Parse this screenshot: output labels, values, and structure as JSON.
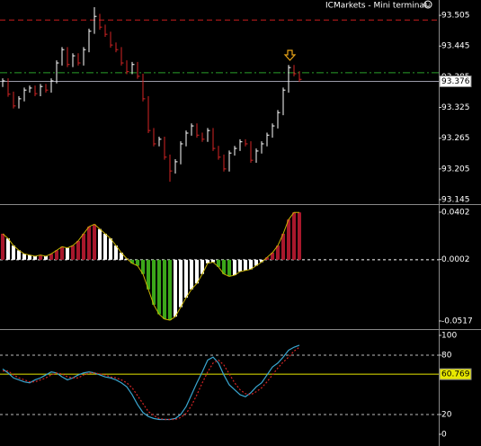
{
  "chart_data": [
    {
      "type": "ohlc",
      "title": "ICMarkets - Mini terminal",
      "high": [
        93.382,
        93.382,
        93.356,
        93.347,
        93.364,
        93.368,
        93.368,
        93.371,
        93.371,
        93.382,
        93.417,
        93.443,
        93.443,
        93.431,
        93.431,
        93.443,
        93.479,
        93.521,
        93.508,
        93.487,
        93.473,
        93.452,
        93.443,
        93.417,
        93.414,
        93.414,
        93.391,
        93.347,
        93.285,
        93.268,
        93.268,
        93.233,
        93.224,
        93.259,
        93.28,
        93.294,
        93.294,
        93.276,
        93.285,
        93.285,
        93.25,
        93.233,
        93.241,
        93.25,
        93.263,
        93.263,
        93.259,
        93.245,
        93.259,
        93.276,
        93.294,
        93.32,
        93.364,
        93.408,
        93.408,
        93.396
      ],
      "low": [
        93.365,
        93.346,
        93.323,
        93.323,
        93.337,
        93.354,
        93.347,
        93.347,
        93.354,
        93.354,
        93.372,
        93.407,
        93.404,
        93.404,
        93.407,
        93.407,
        93.433,
        93.469,
        93.477,
        93.463,
        93.442,
        93.433,
        93.407,
        93.39,
        93.39,
        93.381,
        93.337,
        93.275,
        93.249,
        93.249,
        93.223,
        93.18,
        93.196,
        93.214,
        93.249,
        93.27,
        93.266,
        93.258,
        93.258,
        93.24,
        93.223,
        93.2,
        93.2,
        93.231,
        93.24,
        93.249,
        93.217,
        93.217,
        93.235,
        93.249,
        93.266,
        93.284,
        93.31,
        93.354,
        93.386,
        93.375
      ],
      "close": [
        93.377,
        93.351,
        93.328,
        93.342,
        93.359,
        93.363,
        93.352,
        93.366,
        93.359,
        93.377,
        93.412,
        93.438,
        93.409,
        93.426,
        93.412,
        93.438,
        93.474,
        93.503,
        93.482,
        93.468,
        93.447,
        93.438,
        93.412,
        93.395,
        93.409,
        93.386,
        93.342,
        93.28,
        93.254,
        93.263,
        93.228,
        93.201,
        93.219,
        93.254,
        93.275,
        93.289,
        93.271,
        93.263,
        93.28,
        93.245,
        93.228,
        93.205,
        93.236,
        93.245,
        93.258,
        93.254,
        93.222,
        93.24,
        93.254,
        93.271,
        93.289,
        93.315,
        93.359,
        93.403,
        93.391,
        93.38
      ],
      "up_color": "#ffffff",
      "down_color": "#d42424",
      "ylim": [
        93.138,
        93.535
      ],
      "yticks": [
        93.145,
        93.205,
        93.265,
        93.325,
        93.385,
        93.445,
        93.505
      ],
      "levels": [
        {
          "value": 93.496,
          "color": "#c81e1e",
          "dash": "6 4"
        },
        {
          "value": 93.393,
          "color": "#2aa02a",
          "dash": "8 3 2 3"
        }
      ],
      "current": {
        "value": 93.376,
        "color": "#9a9aa8"
      }
    },
    {
      "type": "bar",
      "values": [
        0.022,
        0.018,
        0.012,
        0.008,
        0.005,
        0.004,
        0.003,
        0.004,
        0.003,
        0.005,
        0.008,
        0.011,
        0.01,
        0.012,
        0.016,
        0.022,
        0.028,
        0.03,
        0.026,
        0.022,
        0.018,
        0.012,
        0.006,
        0.001,
        -0.003,
        -0.005,
        -0.012,
        -0.025,
        -0.038,
        -0.046,
        -0.05,
        -0.051,
        -0.048,
        -0.04,
        -0.032,
        -0.025,
        -0.02,
        -0.012,
        -0.003,
        -0.002,
        -0.006,
        -0.012,
        -0.014,
        -0.013,
        -0.01,
        -0.009,
        -0.008,
        -0.005,
        -0.002,
        0.002,
        0.006,
        0.012,
        0.022,
        0.034,
        0.04,
        0.04
      ],
      "pos_color": "#a8182c",
      "neg_color": "#3ca61a",
      "fade_color": "#ffffff",
      "ylim": [
        -0.0578,
        0.0455
      ],
      "yticks": [
        -0.0517,
        0.0002,
        0.0402
      ]
    },
    {
      "type": "line",
      "series": [
        {
          "color": "#3aa6d0",
          "values": [
            66,
            62,
            57,
            55,
            53,
            52,
            55,
            57,
            60,
            63,
            62,
            58,
            55,
            57,
            60,
            62,
            63,
            62,
            60,
            58,
            57,
            55,
            52,
            48,
            40,
            30,
            22,
            18,
            16,
            15,
            15,
            15,
            16,
            20,
            28,
            40,
            52,
            63,
            75,
            78,
            72,
            60,
            50,
            45,
            40,
            38,
            42,
            48,
            52,
            60,
            68,
            72,
            78,
            85,
            88,
            90
          ]
        },
        {
          "color": "#d42424",
          "dash": "2 2",
          "values": [
            64,
            64,
            60,
            57,
            55,
            53,
            53,
            55,
            57,
            60,
            62,
            61,
            58,
            57,
            57,
            60,
            62,
            62,
            61,
            60,
            58,
            57,
            55,
            52,
            47,
            39,
            31,
            23,
            19,
            16,
            15,
            15,
            15,
            17,
            21,
            29,
            40,
            52,
            63,
            72,
            75,
            70,
            61,
            52,
            45,
            41,
            40,
            43,
            47,
            53,
            60,
            67,
            73,
            78,
            84,
            88
          ]
        }
      ],
      "ylim": [
        -8.2,
        104.5
      ],
      "yticks": [
        0,
        20,
        80,
        100
      ],
      "levels": [
        {
          "value": 20,
          "color": "#bbbbbb",
          "dash": "3 3"
        },
        {
          "value": 80,
          "color": "#bbbbbb",
          "dash": "3 3"
        }
      ],
      "current": {
        "value": 60.769,
        "color": "#e8e800"
      }
    }
  ]
}
